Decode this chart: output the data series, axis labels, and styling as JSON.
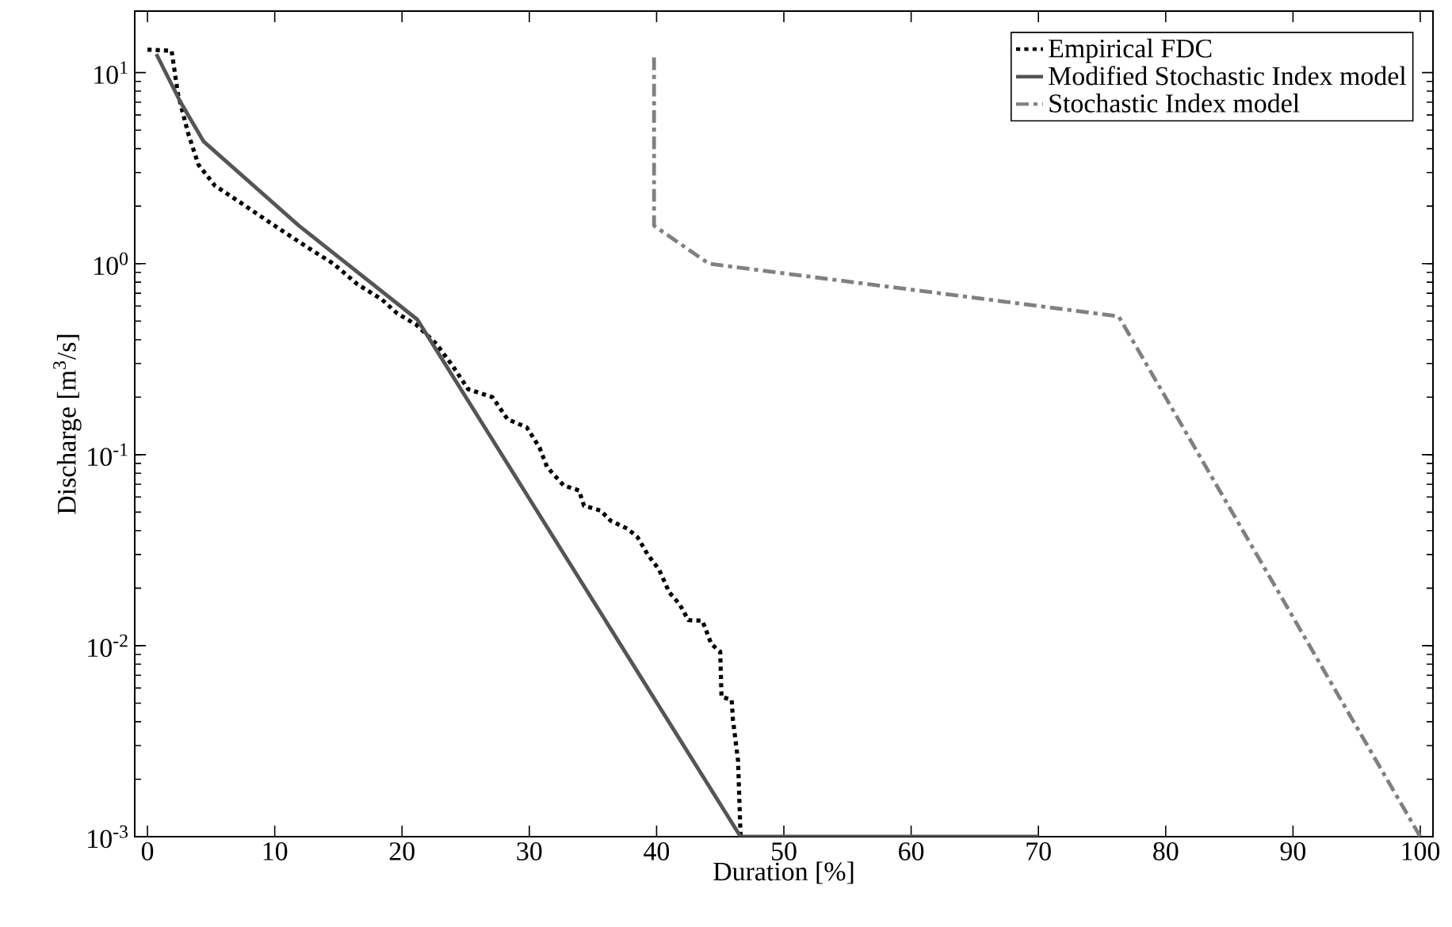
{
  "chart_data": {
    "type": "line",
    "xlabel": "Duration [%]",
    "ylabel": "Discharge [m$^{3}$/s]",
    "log": "y",
    "grid": false,
    "legend": "top right",
    "marker": "none",
    "xlim": [
      -1,
      101
    ],
    "ylim": [
      0.001,
      21
    ],
    "xticks": [
      0,
      10,
      20,
      30,
      40,
      50,
      60,
      70,
      80,
      90,
      100
    ],
    "yticks": [
      {
        "value": 0.001,
        "label": "10$^{-3}$"
      },
      {
        "value": 0.01,
        "label": "10$^{-2}$"
      },
      {
        "value": 0.1,
        "label": "10$^{-1}$"
      },
      {
        "value": 1,
        "label": "10$^{0}$"
      },
      {
        "value": 10,
        "label": "10$^{1}$"
      }
    ],
    "series": [
      {
        "name": "Empirical FDC",
        "color": "#000000",
        "line_style": "dotted",
        "x": [
          0,
          1.9,
          2.4,
          3.2,
          4.0,
          5.3,
          7.2,
          9.0,
          10.9,
          12.8,
          14.6,
          16.5,
          18.4,
          19.6,
          21.1,
          22.7,
          24.0,
          25.2,
          27.1,
          28.3,
          29.8,
          30.8,
          31.4,
          32.7,
          33.9,
          34.3,
          35.6,
          36.4,
          37.7,
          38.5,
          39.3,
          40.2,
          41.0,
          41.8,
          42.5,
          43.6,
          44.3,
          45.0,
          45.1,
          45.9,
          46.0,
          46.4,
          46.6
        ],
        "values": [
          13.2,
          13,
          7.7,
          4.8,
          3.3,
          2.56,
          2.11,
          1.75,
          1.44,
          1.19,
          1.0,
          0.78,
          0.65,
          0.55,
          0.48,
          0.38,
          0.29,
          0.22,
          0.2,
          0.153,
          0.139,
          0.109,
          0.086,
          0.069,
          0.065,
          0.054,
          0.051,
          0.045,
          0.041,
          0.037,
          0.03,
          0.025,
          0.019,
          0.0165,
          0.0136,
          0.0135,
          0.0102,
          0.0093,
          0.0054,
          0.0052,
          0.0041,
          0.0025,
          0.001
        ]
      },
      {
        "name": "Modified Stochastic Index model",
        "color": "#555555",
        "line_style": "solid",
        "x": [
          0.7,
          2.6,
          4.4,
          11.9,
          21.2,
          46.6,
          70
        ],
        "values": [
          12.5,
          7.0,
          4.37,
          1.58,
          0.51,
          0.001,
          0.001
        ]
      },
      {
        "name": "Stochastic Index model",
        "color": "#808080",
        "line_style": "dashdot",
        "x": [
          39.8,
          39.8,
          44.1,
          76.3,
          100
        ],
        "values": [
          12,
          1.58,
          1.0,
          0.53,
          0.001
        ]
      }
    ]
  }
}
